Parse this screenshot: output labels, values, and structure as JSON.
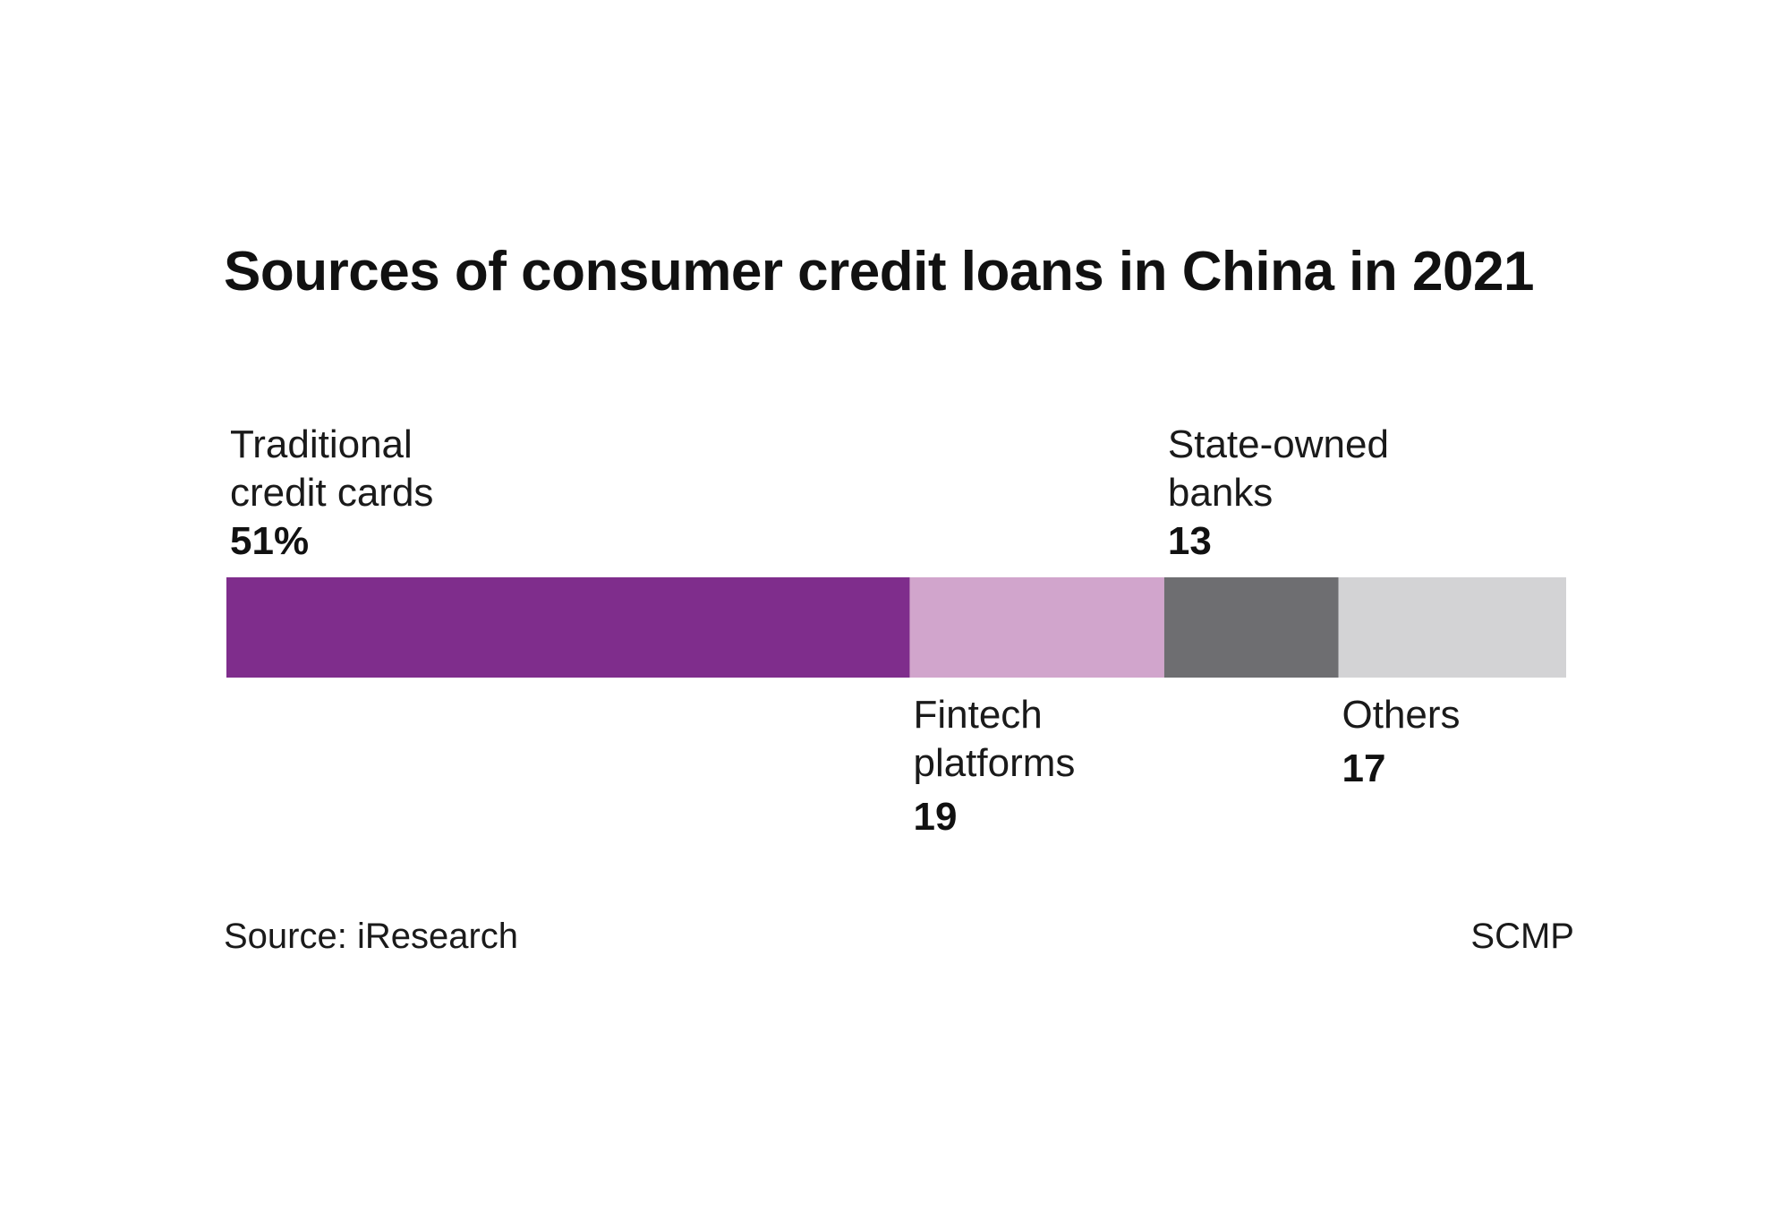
{
  "chart_data": {
    "type": "bar",
    "orientation": "horizontal-stacked",
    "title": "Sources of consumer credit loans in China in 2021",
    "unit": "%",
    "segments": [
      {
        "label_lines": [
          "Traditional",
          "credit cards"
        ],
        "value": 51,
        "value_text": "51%",
        "color": "#7f2d8c",
        "label_position": "above"
      },
      {
        "label_lines": [
          "Fintech",
          "platforms"
        ],
        "value": 19,
        "value_text": "19",
        "color": "#d1a5cc",
        "label_position": "below"
      },
      {
        "label_lines": [
          "State-owned",
          "banks"
        ],
        "value": 13,
        "value_text": "13",
        "color": "#6e6e71",
        "label_position": "above"
      },
      {
        "label_lines": [
          "Others"
        ],
        "value": 17,
        "value_text": "17",
        "color": "#d3d3d5",
        "label_position": "below"
      }
    ]
  },
  "footer": {
    "source": "Source: iResearch",
    "credit": "SCMP"
  }
}
